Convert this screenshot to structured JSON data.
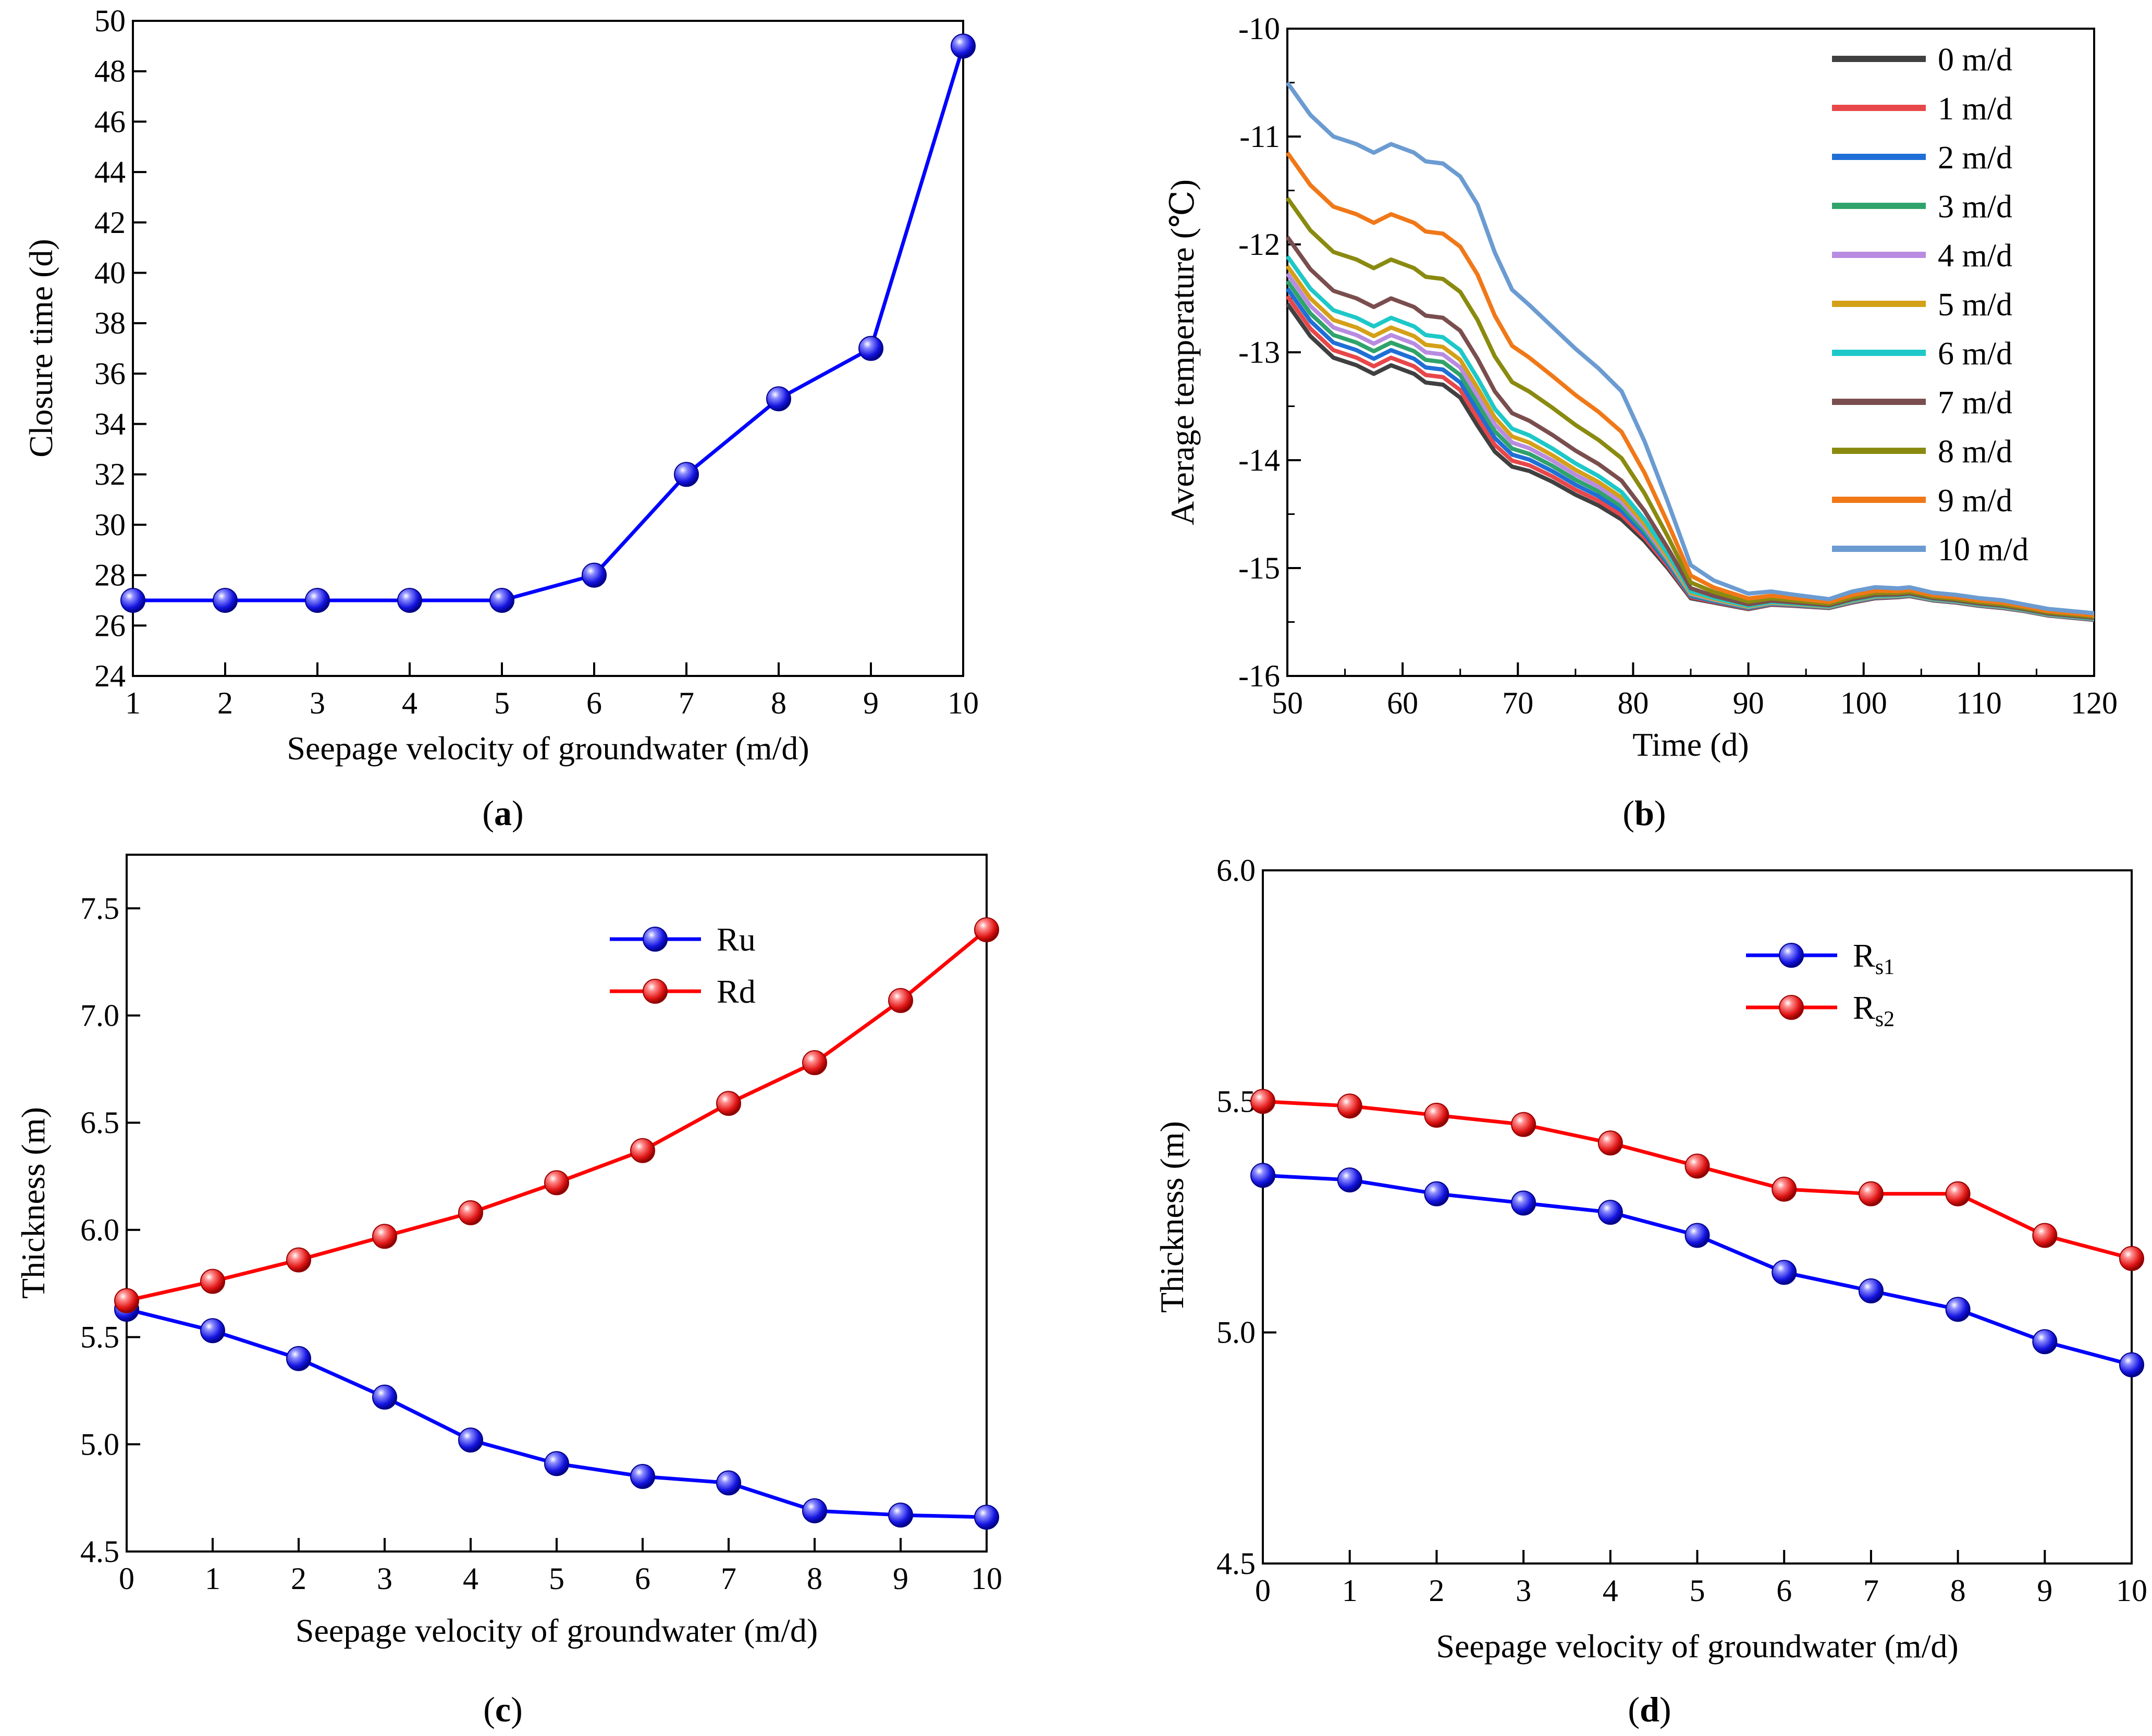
{
  "panel_labels": [
    "a",
    "b",
    "c",
    "d"
  ],
  "chart_data": [
    {
      "id": "a",
      "type": "line",
      "xlabel": "Seepage velocity of groundwater (m/d)",
      "ylabel": "Closure time (d)",
      "xlim": [
        1,
        10
      ],
      "ylim": [
        24,
        50
      ],
      "xticks": [
        1,
        2,
        3,
        4,
        5,
        6,
        7,
        8,
        9,
        10
      ],
      "yticks": [
        24,
        26,
        28,
        30,
        32,
        34,
        36,
        38,
        40,
        42,
        44,
        46,
        48,
        50
      ],
      "series": [
        {
          "name": "Closure time",
          "color": "#0000ff",
          "marker": "sphere",
          "x": [
            1,
            2,
            3,
            4,
            5,
            6,
            7,
            8,
            9,
            10
          ],
          "y": [
            27,
            27,
            27,
            27,
            27,
            28,
            32,
            35,
            37,
            49
          ]
        }
      ]
    },
    {
      "id": "b",
      "type": "line",
      "xlabel": "Time (d)",
      "ylabel": "Average temperature (℃)",
      "xlim": [
        50,
        120
      ],
      "ylim": [
        -16,
        -10
      ],
      "xticks": [
        50,
        60,
        70,
        80,
        90,
        100,
        110,
        120
      ],
      "yticks": [
        -16,
        -15,
        -14,
        -13,
        -12,
        -11,
        -10
      ],
      "legend_position": "top-right",
      "x": [
        50,
        52,
        54,
        56,
        57.5,
        59,
        61,
        62,
        63.5,
        65,
        66.5,
        68,
        69.5,
        71,
        73,
        75,
        77,
        79,
        81,
        83,
        85,
        87,
        89,
        90,
        92,
        94,
        97,
        99,
        101,
        103,
        104,
        106,
        108,
        110,
        112,
        114,
        116,
        118,
        120
      ],
      "series": [
        {
          "name": "0 m/d",
          "color": "#404040",
          "offset": 0.0
        },
        {
          "name": "1 m/d",
          "color": "#e8474a",
          "offset": 0.07
        },
        {
          "name": "2 m/d",
          "color": "#1f6fd6",
          "offset": 0.14
        },
        {
          "name": "3 m/d",
          "color": "#2fa36b",
          "offset": 0.21
        },
        {
          "name": "4 m/d",
          "color": "#b88ce0",
          "offset": 0.28
        },
        {
          "name": "5 m/d",
          "color": "#d4a017",
          "offset": 0.35
        },
        {
          "name": "6 m/d",
          "color": "#1ec8c8",
          "offset": 0.44
        },
        {
          "name": "7 m/d",
          "color": "#7a4e4e",
          "offset": 0.62
        },
        {
          "name": "8 m/d",
          "color": "#8a8a10",
          "offset": 0.98
        },
        {
          "name": "9 m/d",
          "color": "#f07818",
          "offset": 1.4
        },
        {
          "name": "10 m/d",
          "color": "#6b9bd1",
          "offset": 2.05
        }
      ],
      "base_curve": [
        -12.55,
        -12.85,
        -13.05,
        -13.12,
        -13.2,
        -13.12,
        -13.2,
        -13.28,
        -13.3,
        -13.42,
        -13.68,
        -13.92,
        -14.06,
        -14.1,
        -14.2,
        -14.32,
        -14.42,
        -14.55,
        -14.75,
        -15.0,
        -15.28,
        -15.32,
        -15.36,
        -15.38,
        -15.34,
        -15.35,
        -15.37,
        -15.32,
        -15.28,
        -15.27,
        -15.26,
        -15.3,
        -15.32,
        -15.35,
        -15.37,
        -15.4,
        -15.44,
        -15.46,
        -15.48
      ],
      "offset_weights": [
        1,
        1,
        1,
        1,
        1,
        1,
        1,
        1,
        1,
        1,
        1,
        0.9,
        0.8,
        0.75,
        0.7,
        0.66,
        0.62,
        0.58,
        0.45,
        0.3,
        0.15,
        0.1,
        0.08,
        0.07,
        0.06,
        0.05,
        0.04,
        0.05,
        0.05,
        0.04,
        0.04,
        0.035,
        0.035,
        0.035,
        0.035,
        0.03,
        0.03,
        0.03,
        0.03
      ]
    },
    {
      "id": "c",
      "type": "line",
      "xlabel": "Seepage velocity of groundwater (m/d)",
      "ylabel": "Thickness (m)",
      "xlim": [
        0,
        10
      ],
      "ylim": [
        4.5,
        7.75
      ],
      "xticks": [
        0,
        1,
        2,
        3,
        4,
        5,
        6,
        7,
        8,
        9,
        10
      ],
      "yticks": [
        4.5,
        5.0,
        5.5,
        6.0,
        6.5,
        7.0,
        7.5
      ],
      "ytick_labels": [
        "4.5",
        "5.0",
        "5.5",
        "6.0",
        "6.5",
        "7.0",
        "7.5"
      ],
      "legend_position": "top-center",
      "series": [
        {
          "name": "Ru",
          "color": "#0000ff",
          "marker": "sphere",
          "x": [
            0,
            1,
            2,
            3,
            4,
            5,
            6,
            7,
            8,
            9,
            10
          ],
          "y": [
            5.63,
            5.53,
            5.4,
            5.22,
            5.02,
            4.91,
            4.85,
            4.82,
            4.69,
            4.67,
            4.66
          ]
        },
        {
          "name": "Rd",
          "color": "#ff0000",
          "marker": "sphere",
          "x": [
            0,
            1,
            2,
            3,
            4,
            5,
            6,
            7,
            8,
            9,
            10
          ],
          "y": [
            5.67,
            5.76,
            5.86,
            5.97,
            6.08,
            6.22,
            6.37,
            6.59,
            6.78,
            7.07,
            7.4
          ]
        }
      ]
    },
    {
      "id": "d",
      "type": "line",
      "xlabel": "Seepage velocity of groundwater (m/d)",
      "ylabel": "Thickness (m)",
      "xlim": [
        0,
        10
      ],
      "ylim": [
        4.5,
        6.0
      ],
      "xticks": [
        0,
        1,
        2,
        3,
        4,
        5,
        6,
        7,
        8,
        9,
        10
      ],
      "yticks": [
        4.5,
        5.0,
        5.5,
        6.0
      ],
      "ytick_labels": [
        "4.5",
        "5.0",
        "5.5",
        "6.0"
      ],
      "legend_position": "top-center",
      "series": [
        {
          "name": "Rs1",
          "label_main": "R",
          "label_sub": "s1",
          "color": "#0000ff",
          "marker": "sphere",
          "x": [
            0,
            1,
            2,
            3,
            4,
            5,
            6,
            7,
            8,
            9,
            10
          ],
          "y": [
            5.34,
            5.33,
            5.3,
            5.28,
            5.26,
            5.21,
            5.13,
            5.09,
            5.05,
            4.98,
            4.93
          ]
        },
        {
          "name": "Rs2",
          "label_main": "R",
          "label_sub": "s2",
          "color": "#ff0000",
          "marker": "sphere",
          "x": [
            0,
            1,
            2,
            3,
            4,
            5,
            6,
            7,
            8,
            9,
            10
          ],
          "y": [
            5.5,
            5.49,
            5.47,
            5.45,
            5.41,
            5.36,
            5.31,
            5.3,
            5.3,
            5.21,
            5.16
          ]
        }
      ]
    }
  ]
}
